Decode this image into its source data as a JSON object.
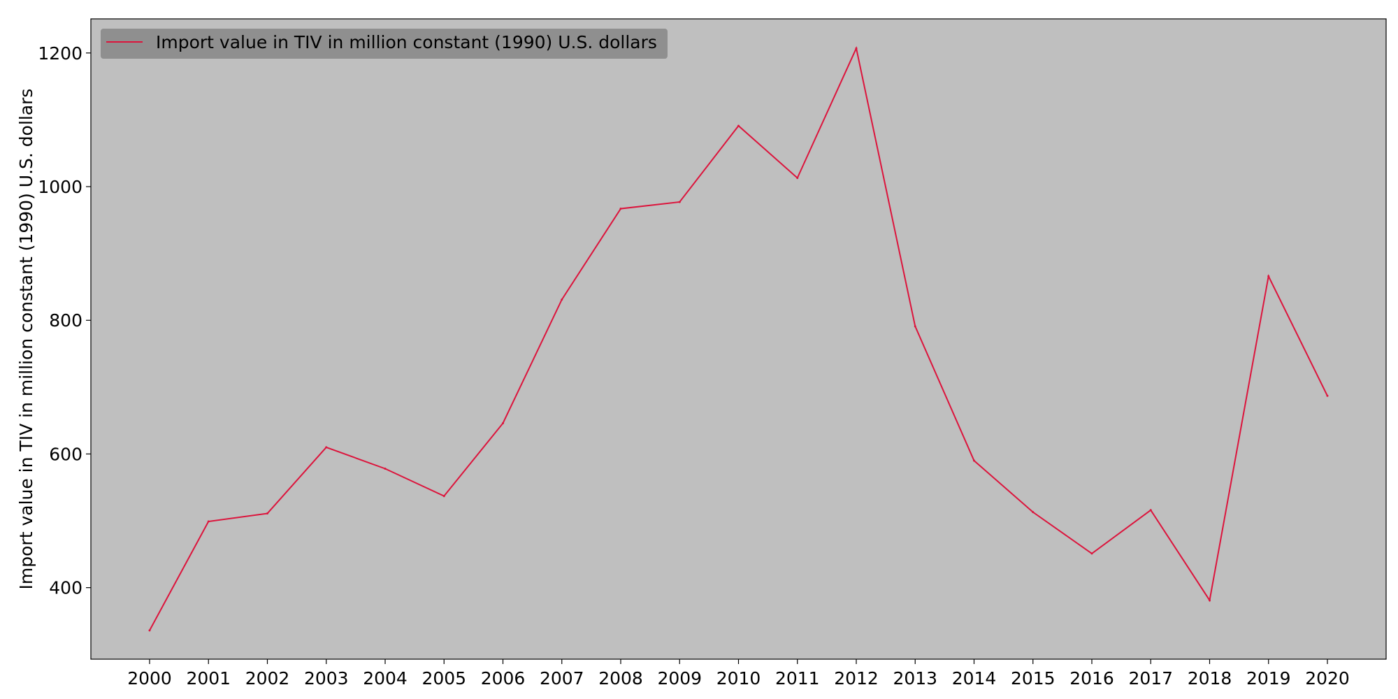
{
  "chart_data": {
    "type": "line",
    "x": [
      "2000",
      "2001",
      "2002",
      "2003",
      "2004",
      "2005",
      "2006",
      "2007",
      "2008",
      "2009",
      "2010",
      "2011",
      "2012",
      "2013",
      "2014",
      "2015",
      "2016",
      "2017",
      "2018",
      "2019",
      "2020"
    ],
    "series": [
      {
        "name": "Import value in TIV in million constant (1990) U.S. dollars",
        "values": [
          336,
          499,
          511,
          610,
          578,
          537,
          646,
          831,
          967,
          977,
          1091,
          1013,
          1207,
          791,
          590,
          513,
          451,
          516,
          381,
          866,
          687
        ],
        "color": "#dc143c"
      }
    ],
    "title": "",
    "xlabel": "",
    "ylabel": "Import value in TIV in million constant (1990) U.S. dollars",
    "yticks": [
      400,
      600,
      800,
      1000,
      1200
    ],
    "ylim": [
      293,
      1251
    ],
    "grid": false,
    "legend_position": "top-left",
    "plot_background": "#bfbfbf",
    "legend_background": "#8f8f8f"
  }
}
